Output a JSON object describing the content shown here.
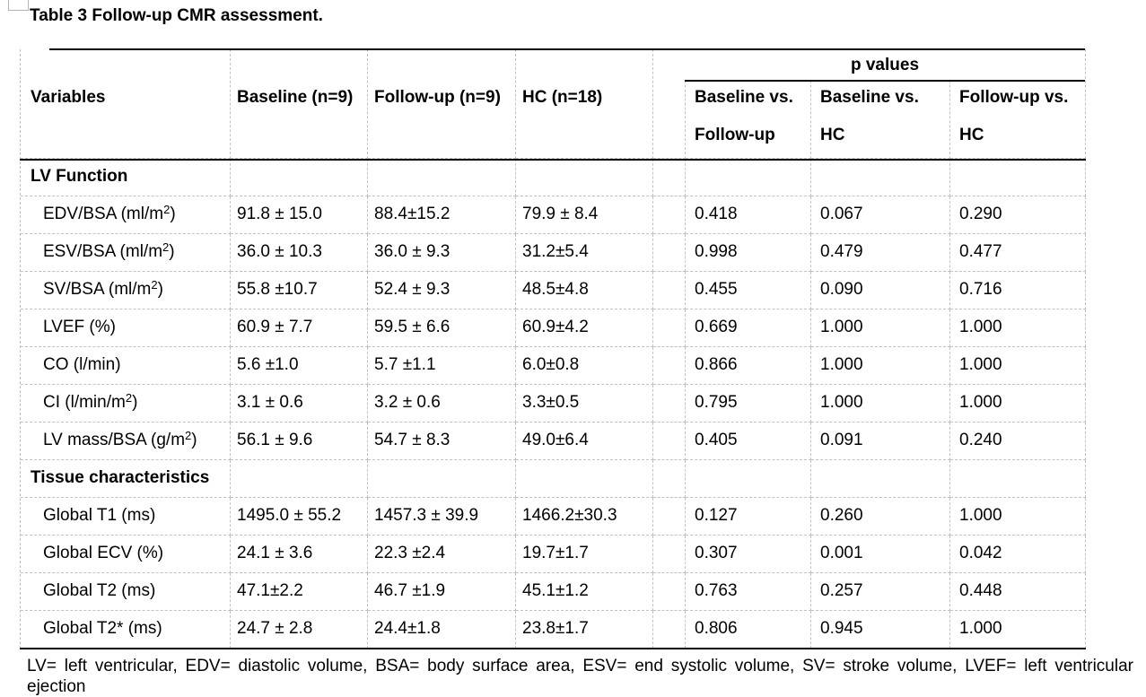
{
  "page": {
    "title": "Table 3 Follow-up CMR assessment.",
    "footnote": "LV= left ventricular, EDV= diastolic volume, BSA= body surface area, ESV= end systolic volume, SV= stroke volume, LVEF= left ventricular ejection"
  },
  "table": {
    "p_group_label": "p values",
    "header": {
      "variables": "Variables",
      "baseline": "Baseline (n=9)",
      "followup": "Follow-up (n=9)",
      "hc": "HC (n=18)",
      "p_columns": [
        {
          "line1": "Baseline vs.",
          "line2": "Follow-up"
        },
        {
          "line1": "Baseline vs.",
          "line2": "HC"
        },
        {
          "line1": "Follow-up vs.",
          "line2": "HC"
        }
      ]
    },
    "rows": [
      {
        "section": "LV Function"
      },
      {
        "label": "EDV/BSA (ml/m²)",
        "baseline": "91.8 ± 15.0",
        "followup": "88.4±15.2",
        "hc": "79.9 ± 8.4",
        "p": [
          "0.418",
          "0.067",
          "0.290"
        ]
      },
      {
        "label": "ESV/BSA (ml/m²)",
        "baseline": "36.0 ± 10.3",
        "followup": "36.0 ± 9.3",
        "hc": "31.2±5.4",
        "p": [
          "0.998",
          "0.479",
          "0.477"
        ]
      },
      {
        "label": "SV/BSA (ml/m²)",
        "baseline": "55.8 ±10.7",
        "followup": "52.4 ± 9.3",
        "hc": "48.5±4.8",
        "p": [
          "0.455",
          "0.090",
          "0.716"
        ]
      },
      {
        "label": "LVEF (%)",
        "baseline": "60.9 ± 7.7",
        "followup": "59.5 ± 6.6",
        "hc": "60.9±4.2",
        "p": [
          "0.669",
          "1.000",
          "1.000"
        ]
      },
      {
        "label": "CO (l/min)",
        "baseline": "5.6 ±1.0",
        "followup": "5.7 ±1.1",
        "hc": "6.0±0.8",
        "p": [
          "0.866",
          "1.000",
          "1.000"
        ]
      },
      {
        "label": "CI (l/min/m²)",
        "baseline": "3.1 ± 0.6",
        "followup": "3.2 ± 0.6",
        "hc": "3.3±0.5",
        "p": [
          "0.795",
          "1.000",
          "1.000"
        ]
      },
      {
        "label": "LV mass/BSA (g/m²)",
        "baseline": "56.1 ± 9.6",
        "followup": "54.7 ± 8.3",
        "hc": "49.0±6.4",
        "p": [
          "0.405",
          "0.091",
          "0.240"
        ]
      },
      {
        "section": "Tissue characteristics"
      },
      {
        "label": "Global T1 (ms)",
        "baseline": "1495.0 ± 55.2",
        "followup": "1457.3 ± 39.9",
        "hc": "1466.2±30.3",
        "p": [
          "0.127",
          "0.260",
          "1.000"
        ]
      },
      {
        "label": "Global ECV (%)",
        "baseline": "24.1 ± 3.6",
        "followup": "22.3 ±2.4",
        "hc": "19.7±1.7",
        "p": [
          "0.307",
          "0.001",
          "0.042"
        ]
      },
      {
        "label": "Global T2 (ms)",
        "baseline": "47.1±2.2",
        "followup": "46.7 ±1.9",
        "hc": "45.1±1.2",
        "p": [
          "0.763",
          "0.257",
          "0.448"
        ]
      },
      {
        "label": "Global T2* (ms)",
        "baseline": "24.7 ± 2.8",
        "followup": "24.4±1.8",
        "hc": "23.8±1.7",
        "p": [
          "0.806",
          "0.945",
          "1.000"
        ]
      }
    ]
  }
}
